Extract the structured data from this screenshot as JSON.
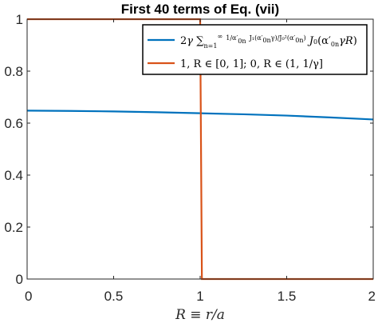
{
  "chart_data": {
    "type": "line",
    "title": "First 40 terms of Eq. (vii)",
    "xlabel": "R ≡ r/a",
    "ylabel": "",
    "xlim": [
      0,
      2
    ],
    "ylim": [
      0,
      1
    ],
    "xticks": [
      0,
      0.5,
      1,
      1.5,
      2
    ],
    "xtick_labels": [
      "0",
      "0.5",
      "1",
      "1.5",
      "2"
    ],
    "yticks": [
      0,
      0.2,
      0.4,
      0.6,
      0.8,
      1
    ],
    "ytick_labels": [
      "0",
      "0.2",
      "0.4",
      "0.6",
      "0.8",
      "1"
    ],
    "grid": false,
    "legend_position": "top-right",
    "series": [
      {
        "name": "2γ ∑_{n=1}^{∞} (1/α′_{0n}) (J₁(α′_{0n}γ)/J₀²(α′_{0n})) J₀(α′_{0n}γR)",
        "color": "#0072BD",
        "x": [
          0,
          0.25,
          0.5,
          0.75,
          1.0,
          1.25,
          1.5,
          1.75,
          2.0
        ],
        "y": [
          0.648,
          0.647,
          0.645,
          0.642,
          0.638,
          0.634,
          0.629,
          0.622,
          0.614
        ]
      },
      {
        "name": "1, R ∈ [0, 1];   0, R ∈ (1, 1/γ]",
        "color": "#D95319",
        "x": [
          0,
          1.0,
          1.01,
          2.0
        ],
        "y": [
          1,
          1,
          0,
          0
        ]
      }
    ]
  }
}
